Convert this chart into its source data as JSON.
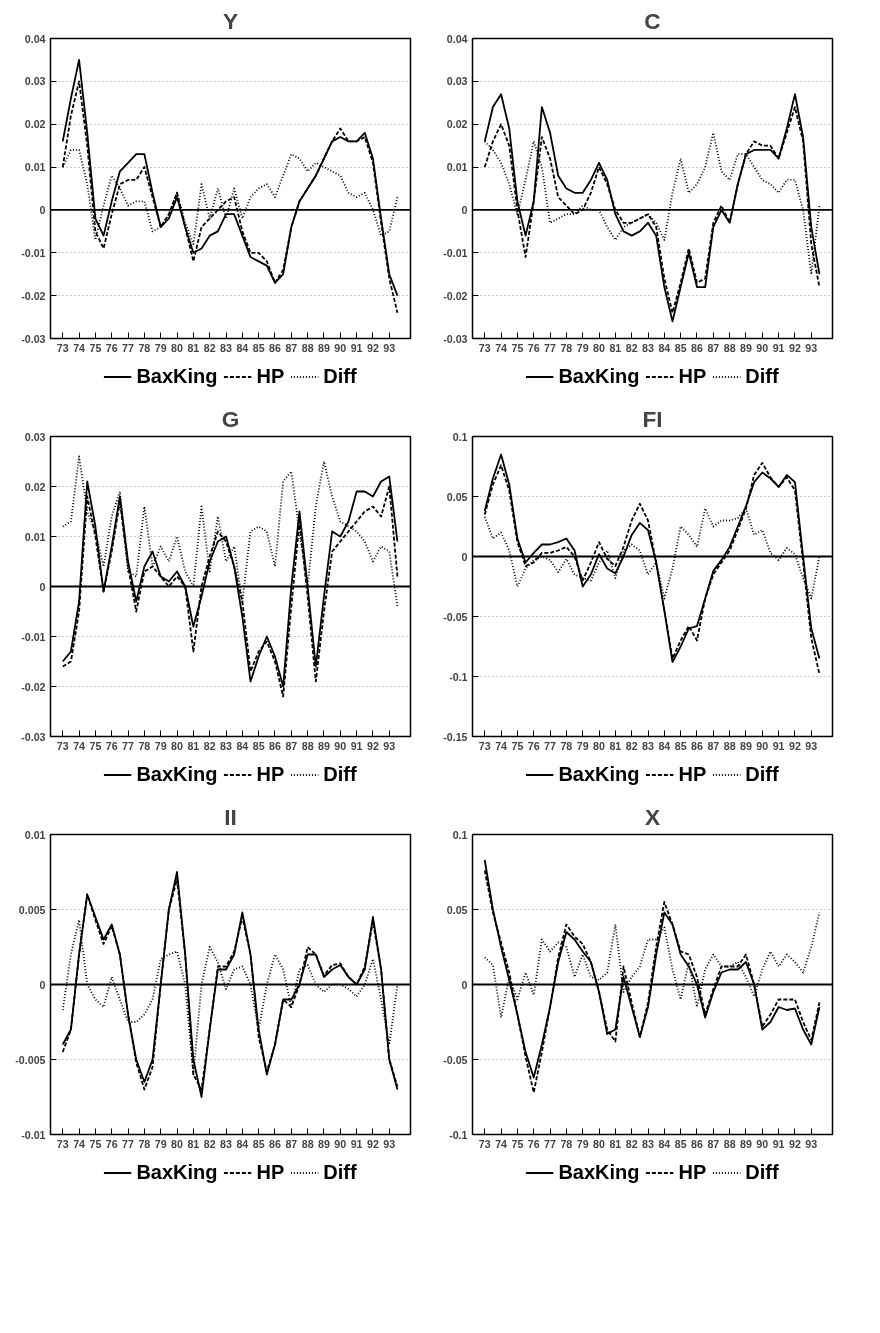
{
  "chart_data": [
    {
      "type": "line",
      "title": "Y",
      "legend": "bottom",
      "grid": "y",
      "x": [
        73,
        73.5,
        74,
        74.5,
        75,
        75.5,
        76,
        76.5,
        77,
        77.5,
        78,
        78.5,
        79,
        79.5,
        80,
        80.5,
        81,
        81.5,
        82,
        82.5,
        83,
        83.5,
        84,
        84.5,
        85,
        85.5,
        86,
        86.5,
        87,
        87.5,
        88,
        88.5,
        89,
        89.5,
        90,
        90.5,
        91,
        91.5,
        92,
        92.5,
        93,
        93.5
      ],
      "xlim": [
        72.25,
        94.3
      ],
      "xticks": [
        73,
        74,
        75,
        76,
        77,
        78,
        79,
        80,
        81,
        82,
        83,
        84,
        85,
        86,
        87,
        88,
        89,
        90,
        91,
        92,
        93
      ],
      "ylim": [
        -0.03,
        0.04
      ],
      "yticks": [
        -0.03,
        -0.02,
        -0.01,
        0,
        0.01,
        0.02,
        0.03,
        0.04
      ],
      "ref_lines": [
        {
          "axis": "y",
          "value": 0,
          "color": "#000000",
          "line_style": "solid"
        }
      ],
      "series": [
        {
          "name": "BaxKing",
          "color": "#000000",
          "line_style": "solid",
          "values": [
            0.016,
            0.026,
            0.035,
            0.018,
            -0.002,
            -0.006,
            0.002,
            0.009,
            0.011,
            0.013,
            0.013,
            0.004,
            -0.004,
            -0.002,
            0.003,
            -0.004,
            -0.01,
            -0.009,
            -0.006,
            -0.005,
            -0.001,
            -0.001,
            -0.006,
            -0.011,
            -0.012,
            -0.013,
            -0.017,
            -0.015,
            -0.004,
            0.002,
            0.005,
            0.008,
            0.012,
            0.016,
            0.017,
            0.016,
            0.016,
            0.018,
            0.012,
            -0.002,
            -0.015,
            -0.02
          ]
        },
        {
          "name": "HP",
          "color": "#000000",
          "line_style": "dashed",
          "values": [
            0.01,
            0.022,
            0.03,
            0.015,
            -0.005,
            -0.009,
            -0.001,
            0.006,
            0.007,
            0.007,
            0.01,
            0.003,
            -0.004,
            -0.001,
            0.004,
            -0.004,
            -0.012,
            -0.004,
            -0.002,
            0.0,
            0.002,
            0.003,
            -0.005,
            -0.01,
            -0.01,
            -0.012,
            -0.017,
            -0.014,
            -0.004,
            0.002,
            0.005,
            0.008,
            0.012,
            0.016,
            0.019,
            0.016,
            0.016,
            0.017,
            0.011,
            -0.003,
            -0.016,
            -0.024
          ]
        },
        {
          "name": "Diff",
          "color": "#000000",
          "line_style": "dotted",
          "values": [
            0.01,
            0.014,
            0.014,
            0.006,
            -0.007,
            0.001,
            0.008,
            0.005,
            0.001,
            0.002,
            0.002,
            -0.005,
            -0.004,
            -0.001,
            0.004,
            -0.003,
            -0.008,
            0.006,
            -0.002,
            0.005,
            -0.002,
            0.005,
            -0.002,
            0.003,
            0.005,
            0.006,
            0.003,
            0.008,
            0.013,
            0.012,
            0.009,
            0.011,
            0.01,
            0.009,
            0.008,
            0.004,
            0.003,
            0.004,
            0.0,
            -0.006,
            -0.005,
            0.003
          ]
        }
      ]
    },
    {
      "type": "line",
      "title": "C",
      "legend": "bottom",
      "grid": "y",
      "x": [
        73,
        73.5,
        74,
        74.5,
        75,
        75.5,
        76,
        76.5,
        77,
        77.5,
        78,
        78.5,
        79,
        79.5,
        80,
        80.5,
        81,
        81.5,
        82,
        82.5,
        83,
        83.5,
        84,
        84.5,
        85,
        85.5,
        86,
        86.5,
        87,
        87.5,
        88,
        88.5,
        89,
        89.5,
        90,
        90.5,
        91,
        91.5,
        92,
        92.5,
        93,
        93.5
      ],
      "xlim": [
        72.25,
        94.3
      ],
      "xticks": [
        73,
        74,
        75,
        76,
        77,
        78,
        79,
        80,
        81,
        82,
        83,
        84,
        85,
        86,
        87,
        88,
        89,
        90,
        91,
        92,
        93
      ],
      "ylim": [
        -0.03,
        0.04
      ],
      "yticks": [
        -0.03,
        -0.02,
        -0.01,
        0,
        0.01,
        0.02,
        0.03,
        0.04
      ],
      "ref_lines": [
        {
          "axis": "y",
          "value": 0,
          "color": "#000000",
          "line_style": "solid"
        }
      ],
      "series": [
        {
          "name": "BaxKing",
          "color": "#000000",
          "line_style": "solid",
          "values": [
            0.016,
            0.024,
            0.027,
            0.019,
            0.002,
            -0.006,
            0.002,
            0.024,
            0.018,
            0.008,
            0.005,
            0.004,
            0.004,
            0.007,
            0.011,
            0.007,
            -0.001,
            -0.005,
            -0.006,
            -0.005,
            -0.003,
            -0.006,
            -0.018,
            -0.026,
            -0.018,
            -0.01,
            -0.018,
            -0.018,
            -0.004,
            0.0,
            -0.003,
            0.006,
            0.013,
            0.014,
            0.014,
            0.014,
            0.012,
            0.019,
            0.027,
            0.017,
            -0.004,
            -0.015
          ]
        },
        {
          "name": "HP",
          "color": "#000000",
          "line_style": "dashed",
          "values": [
            0.01,
            0.016,
            0.02,
            0.015,
            0.0,
            -0.011,
            0.002,
            0.017,
            0.012,
            0.003,
            0.001,
            -0.001,
            0.0,
            0.004,
            0.01,
            0.006,
            0.0,
            -0.003,
            -0.003,
            -0.002,
            -0.001,
            -0.004,
            -0.016,
            -0.024,
            -0.017,
            -0.009,
            -0.017,
            -0.016,
            -0.003,
            0.001,
            -0.003,
            0.006,
            0.013,
            0.016,
            0.015,
            0.015,
            0.012,
            0.018,
            0.024,
            0.016,
            -0.008,
            -0.018
          ]
        },
        {
          "name": "Diff",
          "color": "#000000",
          "line_style": "dotted",
          "values": [
            0.016,
            0.014,
            0.011,
            0.006,
            -0.001,
            0.007,
            0.016,
            0.01,
            -0.003,
            -0.002,
            -0.001,
            -0.001,
            0.001,
            0.0,
            0.0,
            -0.004,
            -0.007,
            -0.004,
            -0.003,
            -0.002,
            -0.001,
            -0.003,
            -0.007,
            0.004,
            0.012,
            0.004,
            0.006,
            0.01,
            0.018,
            0.009,
            0.007,
            0.013,
            0.013,
            0.01,
            0.007,
            0.006,
            0.004,
            0.007,
            0.007,
            0.0,
            -0.015,
            0.001
          ]
        }
      ]
    },
    {
      "type": "line",
      "title": "G",
      "legend": "bottom",
      "grid": "y",
      "x": [
        73,
        73.5,
        74,
        74.5,
        75,
        75.5,
        76,
        76.5,
        77,
        77.5,
        78,
        78.5,
        79,
        79.5,
        80,
        80.5,
        81,
        81.5,
        82,
        82.5,
        83,
        83.5,
        84,
        84.5,
        85,
        85.5,
        86,
        86.5,
        87,
        87.5,
        88,
        88.5,
        89,
        89.5,
        90,
        90.5,
        91,
        91.5,
        92,
        92.5,
        93,
        93.5
      ],
      "xlim": [
        72.25,
        94.3
      ],
      "xticks": [
        73,
        74,
        75,
        76,
        77,
        78,
        79,
        80,
        81,
        82,
        83,
        84,
        85,
        86,
        87,
        88,
        89,
        90,
        91,
        92,
        93
      ],
      "ylim": [
        -0.03,
        0.03
      ],
      "yticks": [
        -0.03,
        -0.02,
        -0.01,
        0,
        0.01,
        0.02,
        0.03
      ],
      "ref_lines": [
        {
          "axis": "y",
          "value": 0,
          "color": "#000000",
          "line_style": "solid"
        }
      ],
      "series": [
        {
          "name": "BaxKing",
          "color": "#000000",
          "line_style": "solid",
          "values": [
            -0.015,
            -0.013,
            -0.003,
            0.021,
            0.012,
            -0.001,
            0.008,
            0.018,
            0.005,
            -0.003,
            0.004,
            0.007,
            0.002,
            0.001,
            0.003,
            0.0,
            -0.008,
            -0.002,
            0.005,
            0.009,
            0.01,
            0.004,
            -0.006,
            -0.019,
            -0.014,
            -0.01,
            -0.014,
            -0.02,
            0.0,
            0.015,
            0.0,
            -0.016,
            -0.002,
            0.011,
            0.01,
            0.013,
            0.019,
            0.019,
            0.018,
            0.021,
            0.022,
            0.009
          ]
        },
        {
          "name": "HP",
          "color": "#000000",
          "line_style": "dashed",
          "values": [
            -0.016,
            -0.015,
            -0.005,
            0.018,
            0.01,
            -0.001,
            0.007,
            0.017,
            0.004,
            -0.005,
            0.003,
            0.004,
            0.002,
            0.0,
            0.002,
            0.0,
            -0.013,
            0.0,
            0.006,
            0.011,
            0.009,
            0.004,
            -0.003,
            -0.017,
            -0.013,
            -0.011,
            -0.015,
            -0.022,
            -0.004,
            0.013,
            -0.002,
            -0.019,
            -0.005,
            0.007,
            0.009,
            0.011,
            0.013,
            0.015,
            0.016,
            0.014,
            0.02,
            0.002
          ]
        },
        {
          "name": "Diff",
          "color": "#000000",
          "line_style": "dotted",
          "values": [
            0.012,
            0.013,
            0.026,
            0.015,
            0.011,
            0.004,
            0.014,
            0.019,
            0.003,
            0.002,
            0.016,
            0.004,
            0.008,
            0.005,
            0.01,
            0.003,
            0.0,
            0.016,
            0.003,
            0.014,
            0.005,
            0.008,
            -0.003,
            0.011,
            0.012,
            0.011,
            0.004,
            0.021,
            0.023,
            0.011,
            0.0,
            0.016,
            0.025,
            0.018,
            0.013,
            0.012,
            0.011,
            0.009,
            0.005,
            0.008,
            0.007,
            -0.004
          ]
        }
      ]
    },
    {
      "type": "line",
      "title": "FI",
      "legend": "bottom",
      "grid": "y",
      "x": [
        73,
        73.5,
        74,
        74.5,
        75,
        75.5,
        76,
        76.5,
        77,
        77.5,
        78,
        78.5,
        79,
        79.5,
        80,
        80.5,
        81,
        81.5,
        82,
        82.5,
        83,
        83.5,
        84,
        84.5,
        85,
        85.5,
        86,
        86.5,
        87,
        87.5,
        88,
        88.5,
        89,
        89.5,
        90,
        90.5,
        91,
        91.5,
        92,
        92.5,
        93,
        93.5
      ],
      "xlim": [
        72.25,
        94.3
      ],
      "xticks": [
        73,
        74,
        75,
        76,
        77,
        78,
        79,
        80,
        81,
        82,
        83,
        84,
        85,
        86,
        87,
        88,
        89,
        90,
        91,
        92,
        93
      ],
      "ylim": [
        -0.15,
        0.1
      ],
      "yticks": [
        -0.15,
        -0.1,
        -0.05,
        0,
        0.05,
        0.1
      ],
      "ref_lines": [
        {
          "axis": "y",
          "value": 0,
          "color": "#000000",
          "line_style": "solid"
        }
      ],
      "series": [
        {
          "name": "BaxKing",
          "color": "#000000",
          "line_style": "solid",
          "values": [
            0.038,
            0.065,
            0.085,
            0.06,
            0.015,
            -0.005,
            0.003,
            0.01,
            0.01,
            0.012,
            0.015,
            0.005,
            -0.025,
            -0.015,
            0.002,
            -0.01,
            -0.014,
            0.0,
            0.018,
            0.028,
            0.022,
            -0.005,
            -0.045,
            -0.088,
            -0.075,
            -0.06,
            -0.058,
            -0.035,
            -0.012,
            -0.003,
            0.008,
            0.025,
            0.042,
            0.062,
            0.07,
            0.065,
            0.058,
            0.068,
            0.062,
            0.0,
            -0.06,
            -0.085
          ]
        },
        {
          "name": "HP",
          "color": "#000000",
          "line_style": "dashed",
          "values": [
            0.035,
            0.06,
            0.076,
            0.055,
            0.012,
            -0.008,
            -0.005,
            0.003,
            0.003,
            0.005,
            0.008,
            0.0,
            -0.02,
            -0.005,
            0.012,
            -0.002,
            -0.008,
            0.008,
            0.03,
            0.044,
            0.03,
            -0.005,
            -0.045,
            -0.085,
            -0.07,
            -0.058,
            -0.07,
            -0.035,
            -0.015,
            -0.005,
            0.005,
            0.022,
            0.04,
            0.068,
            0.078,
            0.066,
            0.058,
            0.066,
            0.055,
            -0.005,
            -0.068,
            -0.098
          ]
        },
        {
          "name": "Diff",
          "color": "#000000",
          "line_style": "dotted",
          "values": [
            0.033,
            0.015,
            0.02,
            0.005,
            -0.025,
            -0.01,
            -0.003,
            0.0,
            -0.003,
            -0.013,
            -0.002,
            -0.015,
            -0.018,
            -0.02,
            -0.005,
            0.005,
            -0.018,
            0.005,
            0.01,
            0.005,
            -0.015,
            -0.005,
            -0.035,
            -0.01,
            0.025,
            0.018,
            0.008,
            0.04,
            0.025,
            0.03,
            0.03,
            0.032,
            0.04,
            0.018,
            0.022,
            0.003,
            -0.003,
            0.007,
            0.002,
            -0.018,
            -0.035,
            0.0
          ]
        }
      ]
    },
    {
      "type": "line",
      "title": "II",
      "legend": "bottom",
      "grid": "y",
      "x": [
        73,
        73.5,
        74,
        74.5,
        75,
        75.5,
        76,
        76.5,
        77,
        77.5,
        78,
        78.5,
        79,
        79.5,
        80,
        80.5,
        81,
        81.5,
        82,
        82.5,
        83,
        83.5,
        84,
        84.5,
        85,
        85.5,
        86,
        86.5,
        87,
        87.5,
        88,
        88.5,
        89,
        89.5,
        90,
        90.5,
        91,
        91.5,
        92,
        92.5,
        93,
        93.5
      ],
      "xlim": [
        72.25,
        94.3
      ],
      "xticks": [
        73,
        74,
        75,
        76,
        77,
        78,
        79,
        80,
        81,
        82,
        83,
        84,
        85,
        86,
        87,
        88,
        89,
        90,
        91,
        92,
        93
      ],
      "ylim": [
        -0.01,
        0.01
      ],
      "yticks": [
        -0.01,
        -0.005,
        0,
        0.005,
        0.01
      ],
      "ref_lines": [
        {
          "axis": "y",
          "value": 0,
          "color": "#000000",
          "line_style": "solid"
        }
      ],
      "series": [
        {
          "name": "BaxKing",
          "color": "#000000",
          "line_style": "solid",
          "values": [
            -0.004,
            -0.003,
            0.002,
            0.006,
            0.0045,
            0.003,
            0.004,
            0.002,
            -0.002,
            -0.005,
            -0.0065,
            -0.005,
            0.0,
            0.005,
            0.0075,
            0.002,
            -0.005,
            -0.0075,
            -0.003,
            0.001,
            0.001,
            0.002,
            0.0048,
            0.002,
            -0.003,
            -0.006,
            -0.004,
            -0.001,
            -0.001,
            0.0,
            0.002,
            0.002,
            0.0005,
            0.001,
            0.0013,
            0.0005,
            0.0,
            0.001,
            0.0045,
            0.001,
            -0.005,
            -0.007
          ]
        },
        {
          "name": "HP",
          "color": "#000000",
          "line_style": "dashed",
          "values": [
            -0.0045,
            -0.003,
            0.002,
            0.006,
            0.0043,
            0.0027,
            0.0039,
            0.002,
            -0.002,
            -0.0052,
            -0.007,
            -0.0055,
            0.0,
            0.005,
            0.007,
            0.002,
            -0.006,
            -0.007,
            -0.003,
            0.0012,
            0.0012,
            0.0022,
            0.0045,
            0.002,
            -0.0035,
            -0.0058,
            -0.004,
            -0.001,
            -0.0015,
            0.0,
            0.0025,
            0.002,
            0.0006,
            0.0013,
            0.0014,
            0.0005,
            0.0,
            0.0012,
            0.0042,
            0.001,
            -0.005,
            -0.0068
          ]
        },
        {
          "name": "Diff",
          "color": "#000000",
          "line_style": "dotted",
          "values": [
            -0.0017,
            0.002,
            0.0043,
            0.0,
            -0.001,
            -0.0015,
            0.0005,
            -0.001,
            -0.0025,
            -0.0025,
            -0.002,
            -0.001,
            0.0017,
            0.002,
            0.0022,
            0.0,
            -0.006,
            0.0,
            0.0025,
            0.0015,
            -0.0003,
            0.001,
            0.0012,
            0.0,
            -0.003,
            0.0,
            0.002,
            0.001,
            -0.0015,
            0.001,
            0.0013,
            0.0,
            -0.0005,
            0.0,
            0.0,
            -0.0003,
            -0.0008,
            0.0,
            0.0017,
            -0.001,
            -0.004,
            0.0
          ]
        }
      ]
    },
    {
      "type": "line",
      "title": "X",
      "legend": "bottom",
      "grid": "y",
      "x": [
        73,
        73.5,
        74,
        74.5,
        75,
        75.5,
        76,
        76.5,
        77,
        77.5,
        78,
        78.5,
        79,
        79.5,
        80,
        80.5,
        81,
        81.5,
        82,
        82.5,
        83,
        83.5,
        84,
        84.5,
        85,
        85.5,
        86,
        86.5,
        87,
        87.5,
        88,
        88.5,
        89,
        89.5,
        90,
        90.5,
        91,
        91.5,
        92,
        92.5,
        93,
        93.5
      ],
      "xlim": [
        72.25,
        94.3
      ],
      "xticks": [
        73,
        74,
        75,
        76,
        77,
        78,
        79,
        80,
        81,
        82,
        83,
        84,
        85,
        86,
        87,
        88,
        89,
        90,
        91,
        92,
        93
      ],
      "ylim": [
        -0.1,
        0.1
      ],
      "yticks": [
        -0.1,
        -0.05,
        0,
        0.05,
        0.1
      ],
      "ref_lines": [
        {
          "axis": "y",
          "value": 0,
          "color": "#000000",
          "line_style": "solid"
        }
      ],
      "series": [
        {
          "name": "BaxKing",
          "color": "#000000",
          "line_style": "solid",
          "values": [
            0.083,
            0.05,
            0.025,
            0.003,
            -0.02,
            -0.045,
            -0.062,
            -0.04,
            -0.015,
            0.015,
            0.035,
            0.03,
            0.022,
            0.015,
            -0.005,
            -0.033,
            -0.03,
            0.005,
            -0.015,
            -0.035,
            -0.015,
            0.02,
            0.048,
            0.04,
            0.02,
            0.012,
            0.0,
            -0.022,
            -0.005,
            0.008,
            0.01,
            0.01,
            0.015,
            0.0,
            -0.03,
            -0.025,
            -0.015,
            -0.017,
            -0.016,
            -0.03,
            -0.04,
            -0.015
          ]
        },
        {
          "name": "HP",
          "color": "#000000",
          "line_style": "dashed",
          "values": [
            0.076,
            0.048,
            0.028,
            0.008,
            -0.02,
            -0.048,
            -0.072,
            -0.045,
            -0.015,
            0.018,
            0.04,
            0.032,
            0.027,
            0.015,
            -0.005,
            -0.03,
            -0.038,
            0.012,
            -0.012,
            -0.035,
            -0.012,
            0.025,
            0.055,
            0.04,
            0.022,
            0.02,
            0.005,
            -0.02,
            -0.003,
            0.012,
            0.012,
            0.012,
            0.02,
            0.0,
            -0.028,
            -0.02,
            -0.01,
            -0.01,
            -0.01,
            -0.025,
            -0.037,
            -0.012
          ]
        },
        {
          "name": "Diff",
          "color": "#000000",
          "line_style": "dotted",
          "values": [
            0.018,
            0.013,
            -0.022,
            0.005,
            -0.01,
            0.008,
            -0.007,
            0.03,
            0.022,
            0.028,
            0.025,
            0.005,
            0.02,
            0.005,
            0.003,
            0.008,
            0.04,
            -0.005,
            0.005,
            0.012,
            0.03,
            0.03,
            0.038,
            0.01,
            -0.01,
            0.015,
            -0.015,
            0.01,
            0.02,
            0.012,
            0.012,
            0.015,
            0.005,
            -0.008,
            0.01,
            0.022,
            0.012,
            0.02,
            0.015,
            0.008,
            0.025,
            0.048
          ]
        }
      ]
    }
  ]
}
